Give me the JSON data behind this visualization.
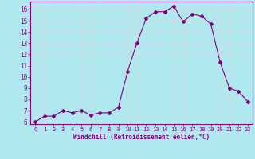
{
  "x": [
    0,
    1,
    2,
    3,
    4,
    5,
    6,
    7,
    8,
    9,
    10,
    11,
    12,
    13,
    14,
    15,
    16,
    17,
    18,
    19,
    20,
    21,
    22,
    23
  ],
  "y": [
    6.0,
    6.5,
    6.5,
    7.0,
    6.8,
    7.0,
    6.6,
    6.8,
    6.8,
    7.3,
    10.5,
    13.0,
    15.2,
    15.8,
    15.8,
    16.3,
    14.9,
    15.6,
    15.4,
    14.7,
    11.3,
    9.0,
    8.7,
    7.8
  ],
  "line_color": "#800080",
  "marker": "D",
  "marker_size": 2,
  "bg_color": "#b0e8f0",
  "grid_color": "#c8dde0",
  "xlabel": "Windchill (Refroidissement éolien,°C)",
  "xlabel_color": "#800080",
  "tick_color": "#800080",
  "ylim": [
    5.8,
    16.7
  ],
  "yticks": [
    6,
    7,
    8,
    9,
    10,
    11,
    12,
    13,
    14,
    15,
    16
  ],
  "xlim": [
    -0.5,
    23.5
  ],
  "xticks": [
    0,
    1,
    2,
    3,
    4,
    5,
    6,
    7,
    8,
    9,
    10,
    11,
    12,
    13,
    14,
    15,
    16,
    17,
    18,
    19,
    20,
    21,
    22,
    23
  ]
}
